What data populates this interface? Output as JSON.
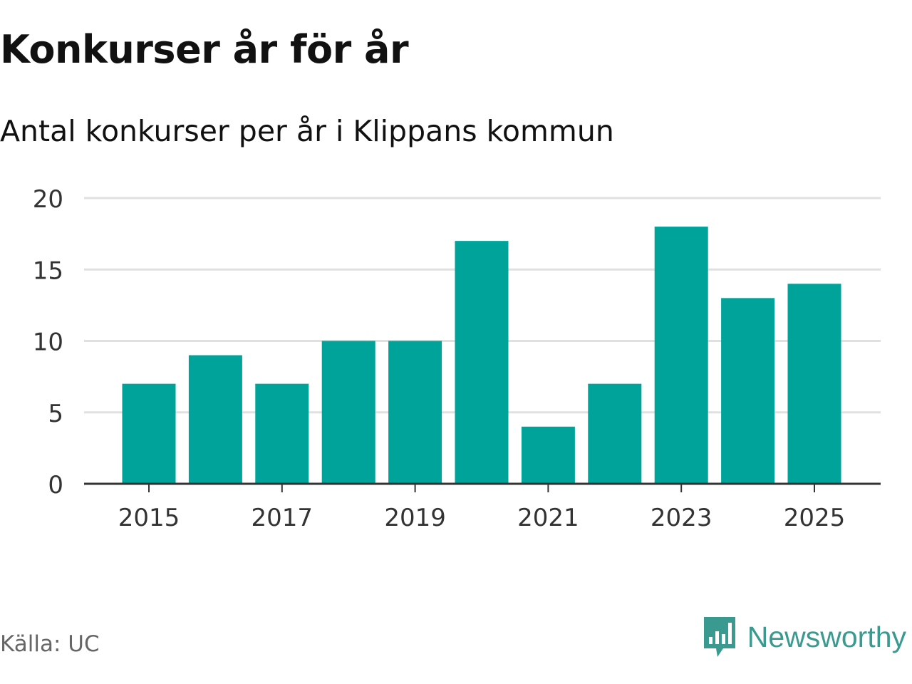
{
  "header": {
    "title": "Konkurser år för år",
    "subtitle": "Antal konkurser per år i Klippans kommun"
  },
  "footer": {
    "source": "Källa: UC",
    "brand": "Newsworthy"
  },
  "colors": {
    "bar": "#00a39a",
    "grid": "#e0e0e0",
    "axis": "#333333",
    "brand": "#3a9a8f"
  },
  "chart_data": {
    "type": "bar",
    "title": "Konkurser år för år",
    "subtitle": "Antal konkurser per år i Klippans kommun",
    "xlabel": "",
    "ylabel": "",
    "categories": [
      "2015",
      "2016",
      "2017",
      "2018",
      "2019",
      "2020",
      "2021",
      "2022",
      "2023",
      "2024",
      "2025"
    ],
    "values": [
      7,
      9,
      7,
      10,
      10,
      17,
      4,
      7,
      18,
      13,
      14
    ],
    "x_tick_labels": [
      "2015",
      "2017",
      "2019",
      "2021",
      "2023",
      "2025"
    ],
    "y_ticks": [
      0,
      5,
      10,
      15,
      20
    ],
    "ylim": [
      0,
      20
    ],
    "grid": true
  }
}
